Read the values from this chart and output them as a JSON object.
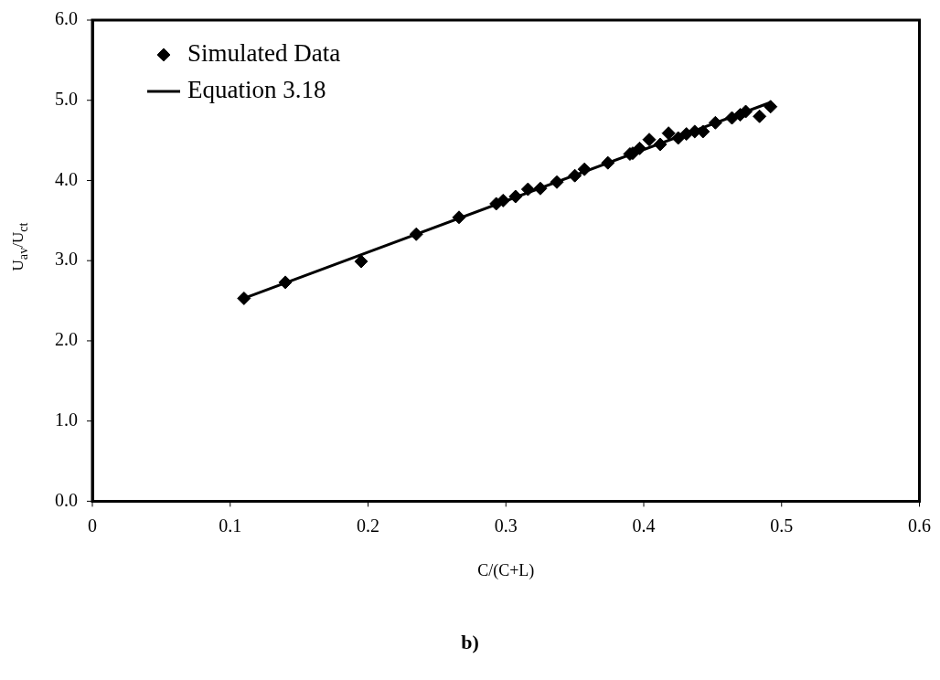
{
  "chart_data": {
    "type": "scatter",
    "xlabel": "C/(C+L)",
    "ylabel": "U$_{av}$/U$_{ct}$",
    "xlim": [
      0,
      0.6
    ],
    "xticks": [
      0,
      0.1,
      0.2,
      0.3,
      0.4,
      0.5,
      0.6
    ],
    "ylim": [
      0,
      6
    ],
    "yticks": [
      {
        "value": 0,
        "label": "0.0"
      },
      {
        "value": 1,
        "label": "1.0"
      },
      {
        "value": 2,
        "label": "2.0"
      },
      {
        "value": 3,
        "label": "3.0"
      },
      {
        "value": 4,
        "label": "4.0"
      },
      {
        "value": 5,
        "label": "5.0"
      },
      {
        "value": 6,
        "label": "6.0"
      }
    ],
    "legend": "top left",
    "annotations": [
      "b)"
    ],
    "series": [
      {
        "name": "Simulated Data",
        "marker": "diamond",
        "color": "#000000",
        "x": [
          0.11,
          0.14,
          0.195,
          0.235,
          0.266,
          0.293,
          0.298,
          0.307,
          0.316,
          0.325,
          0.337,
          0.35,
          0.357,
          0.374,
          0.39,
          0.392,
          0.397,
          0.404,
          0.412,
          0.418,
          0.425,
          0.431,
          0.437,
          0.443,
          0.452,
          0.464,
          0.47,
          0.474,
          0.484,
          0.492
        ],
        "values": [
          2.53,
          2.73,
          2.99,
          3.33,
          3.54,
          3.71,
          3.75,
          3.8,
          3.89,
          3.9,
          3.98,
          4.06,
          4.14,
          4.22,
          4.33,
          4.34,
          4.4,
          4.51,
          4.45,
          4.59,
          4.53,
          4.58,
          4.61,
          4.61,
          4.72,
          4.78,
          4.82,
          4.86,
          4.8,
          4.92
        ]
      },
      {
        "name": "Equation 3.18",
        "type": "line",
        "marker": "none",
        "color": "#000000",
        "x": [
          0.11,
          0.493
        ],
        "values": [
          2.53,
          4.98
        ]
      }
    ]
  }
}
